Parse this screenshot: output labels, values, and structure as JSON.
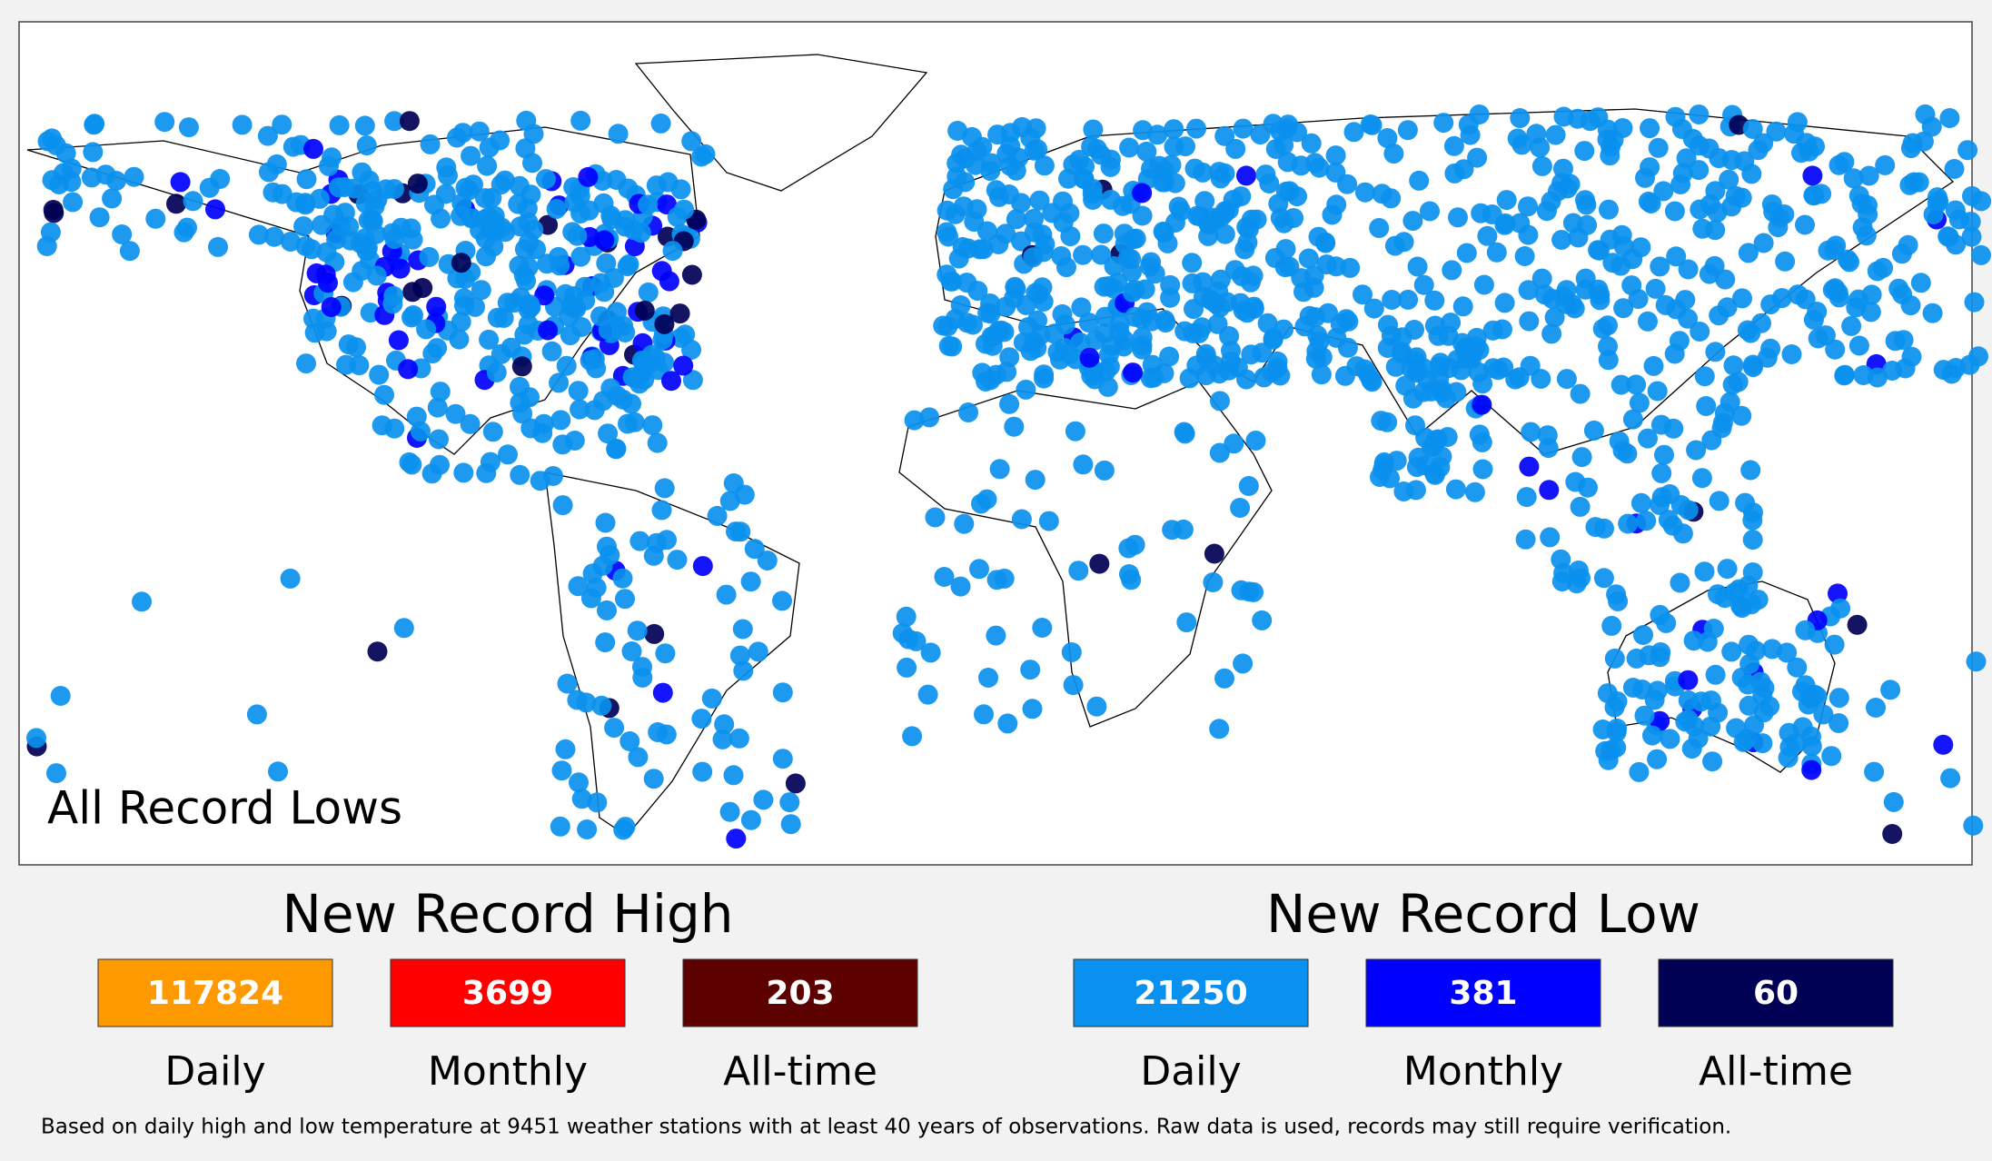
{
  "map": {
    "label": "All Record Lows"
  },
  "legend": [
    {
      "title": "New Record High",
      "items": [
        {
          "count": 117824,
          "label": "Daily",
          "color": "#ff9900"
        },
        {
          "count": 3699,
          "label": "Monthly",
          "color": "#ff0000"
        },
        {
          "count": 203,
          "label": "All-time",
          "color": "#5c0000"
        }
      ]
    },
    {
      "title": "New Record Low",
      "items": [
        {
          "count": 21250,
          "label": "Daily",
          "color": "#0a90ee"
        },
        {
          "count": 381,
          "label": "Monthly",
          "color": "#0000ff"
        },
        {
          "count": 60,
          "label": "All-time",
          "color": "#000055"
        }
      ]
    }
  ],
  "footnote": "Based on daily high and low temperature at 9451 weather stations with at least 40 years of observations.  Raw data is used, records may still require verification."
}
